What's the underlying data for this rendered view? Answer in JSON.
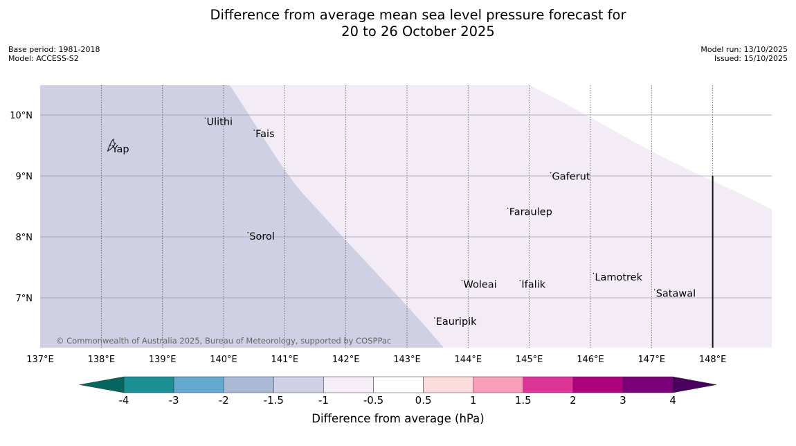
{
  "title": {
    "line1": "Difference from average mean sea level pressure forecast for",
    "line2": "20 to 26 October 2025"
  },
  "meta": {
    "base_period": "Base period: 1981-2018",
    "model": "Model: ACCESS-S2",
    "model_run": "Model run: 13/10/2025",
    "issued": "Issued: 15/10/2025"
  },
  "map": {
    "lon_range": [
      137,
      149
    ],
    "lat_range": [
      6.2,
      10.5
    ],
    "lon_ticks": [
      {
        "value": 137,
        "label": "137°E"
      },
      {
        "value": 138,
        "label": "138°E"
      },
      {
        "value": 139,
        "label": "139°E"
      },
      {
        "value": 140,
        "label": "140°E"
      },
      {
        "value": 141,
        "label": "141°E"
      },
      {
        "value": 142,
        "label": "142°E"
      },
      {
        "value": 143,
        "label": "143°E"
      },
      {
        "value": 144,
        "label": "144°E"
      },
      {
        "value": 145,
        "label": "145°E"
      },
      {
        "value": 146,
        "label": "146°E"
      },
      {
        "value": 147,
        "label": "147°E"
      },
      {
        "value": 148,
        "label": "148°E"
      }
    ],
    "lat_ticks": [
      {
        "value": 10,
        "label": "10°N"
      },
      {
        "value": 9,
        "label": "9°N"
      },
      {
        "value": 8,
        "label": "8°N"
      },
      {
        "value": 7,
        "label": "7°N"
      }
    ],
    "islands": [
      {
        "name": "Yap",
        "lon": 138.15,
        "lat": 9.5
      },
      {
        "name": "Ulithi",
        "lon": 139.7,
        "lat": 9.95
      },
      {
        "name": "Fais",
        "lon": 140.5,
        "lat": 9.75
      },
      {
        "name": "Gaferut",
        "lon": 145.35,
        "lat": 9.05
      },
      {
        "name": "Faraulep",
        "lon": 144.65,
        "lat": 8.47
      },
      {
        "name": "Sorol",
        "lon": 140.4,
        "lat": 8.07
      },
      {
        "name": "Woleai",
        "lon": 143.9,
        "lat": 7.28
      },
      {
        "name": "Ifalik",
        "lon": 144.85,
        "lat": 7.28
      },
      {
        "name": "Lamotrek",
        "lon": 146.05,
        "lat": 7.4
      },
      {
        "name": "Satawal",
        "lon": 147.05,
        "lat": 7.13
      },
      {
        "name": "Eauripik",
        "lon": 143.45,
        "lat": 6.67
      }
    ],
    "copyright": "© Commonwealth of Australia 2025, Bureau of Meteorology, supported by COSPPac",
    "regions": [
      {
        "range": "-1.5 to -1",
        "color": "#cfd0e4"
      },
      {
        "range": "-1 to -0.5",
        "color": "#f3ebf5"
      }
    ]
  },
  "legend": {
    "title": "Difference from average (hPa)",
    "tick_labels": [
      "-4",
      "-3",
      "-2",
      "-1.5",
      "-1",
      "-0.5",
      "0.5",
      "1",
      "1.5",
      "2",
      "3",
      "4"
    ],
    "bins": [
      {
        "color": "#1b8f94"
      },
      {
        "color": "#64a8cf"
      },
      {
        "color": "#a9b9d6"
      },
      {
        "color": "#d0d1e6"
      },
      {
        "color": "#f5eef6"
      },
      {
        "color": "#ffffff"
      },
      {
        "color": "#fddcdc"
      },
      {
        "color": "#f99ebb"
      },
      {
        "color": "#dd3497"
      },
      {
        "color": "#ae017e"
      },
      {
        "color": "#7a0177"
      }
    ],
    "low_extend_color": "#04665e",
    "high_extend_color": "#49005f"
  }
}
